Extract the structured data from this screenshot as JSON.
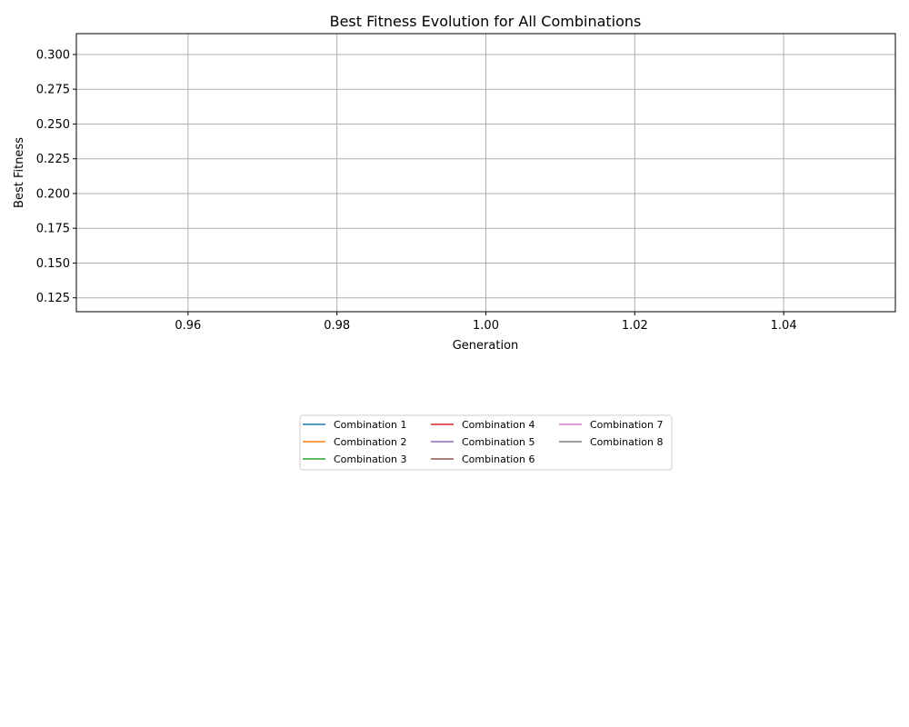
{
  "chart_data": {
    "type": "line",
    "title": "Best Fitness Evolution for All Combinations",
    "xlabel": "Generation",
    "ylabel": "Best Fitness",
    "xlim": [
      0.945,
      1.055
    ],
    "ylim": [
      0.115,
      0.315
    ],
    "x_ticks": [
      0.96,
      0.98,
      1.0,
      1.02,
      1.04
    ],
    "y_ticks": [
      0.125,
      0.15,
      0.175,
      0.2,
      0.225,
      0.25,
      0.275,
      0.3
    ],
    "x_tick_labels": [
      "0.96",
      "0.98",
      "1.00",
      "1.02",
      "1.04"
    ],
    "y_tick_labels": [
      "0.125",
      "0.150",
      "0.175",
      "0.200",
      "0.225",
      "0.250",
      "0.275",
      "0.300"
    ],
    "grid": true,
    "legend_position": "bottom-center",
    "legend_columns": 3,
    "series": [
      {
        "name": "Combination 1",
        "color": "#1f77b4",
        "x": [],
        "y": []
      },
      {
        "name": "Combination 2",
        "color": "#ff7f0e",
        "x": [],
        "y": []
      },
      {
        "name": "Combination 3",
        "color": "#2ca02c",
        "x": [],
        "y": []
      },
      {
        "name": "Combination 4",
        "color": "#d62728",
        "x": [],
        "y": []
      },
      {
        "name": "Combination 5",
        "color": "#9467bd",
        "x": [],
        "y": []
      },
      {
        "name": "Combination 6",
        "color": "#8c564b",
        "x": [],
        "y": []
      },
      {
        "name": "Combination 7",
        "color": "#e377c2",
        "x": [],
        "y": []
      },
      {
        "name": "Combination 8",
        "color": "#7f7f7f",
        "x": [],
        "y": []
      }
    ]
  }
}
